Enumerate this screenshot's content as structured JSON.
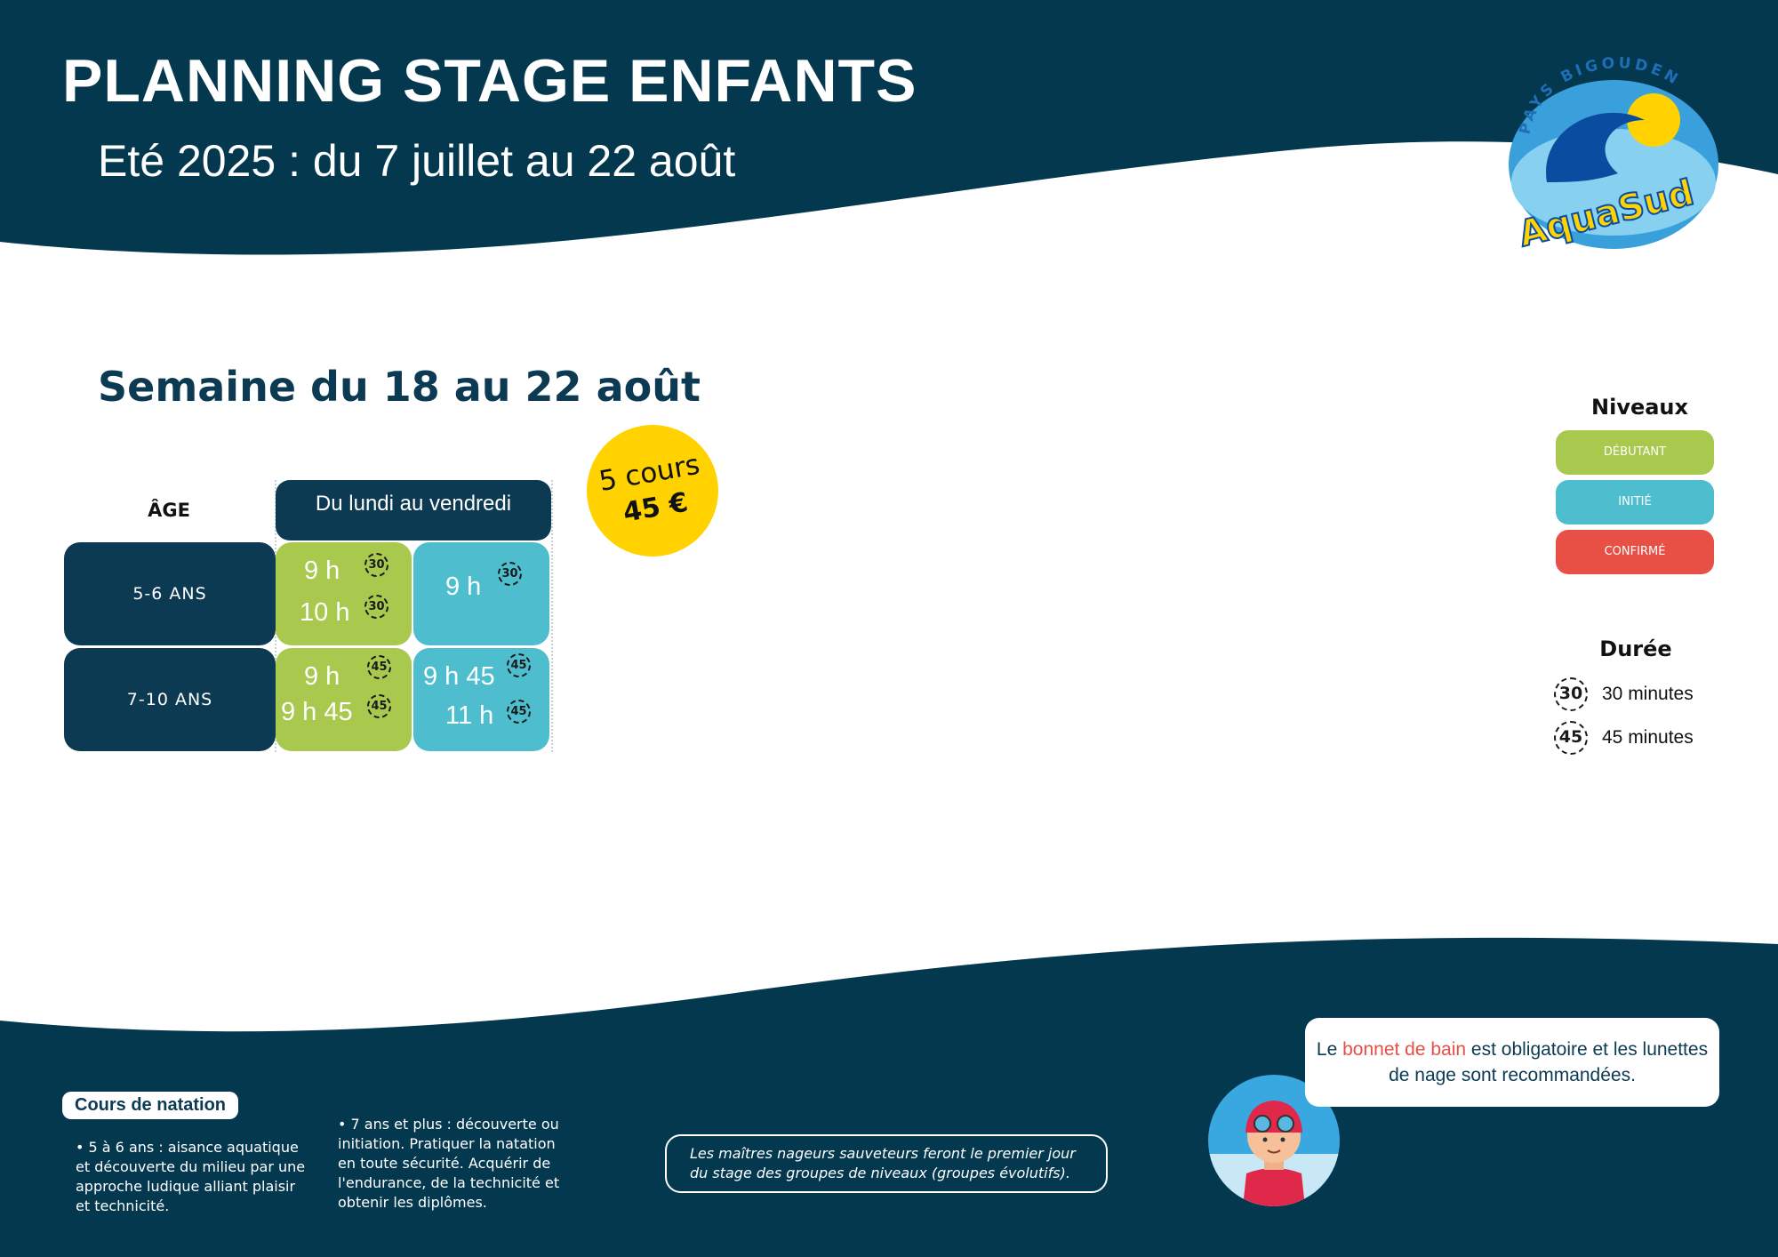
{
  "header": {
    "title": "PLANNING STAGE ENFANTS",
    "subtitle": "Eté 2025 : du 7 juillet au 22 août"
  },
  "logo": {
    "top_text": "PAYS BIGOUDEN",
    "brand": "AquaSud"
  },
  "colors": {
    "navy": "#0c3a52",
    "debutant": "#a8c94e",
    "initie": "#4ebece",
    "confirme": "#e84f45",
    "price_badge": "#ffd200"
  },
  "week": {
    "title": "Semaine du 18 au 22 août"
  },
  "price": {
    "line1": "5 cours",
    "line2": "45 €"
  },
  "table": {
    "age_header": "ÂGE",
    "days_header": "Du lundi au vendredi",
    "rows": [
      {
        "age": "5-6 ANS",
        "debutant": [
          {
            "time": "9 h",
            "duration": "30"
          },
          {
            "time": "10 h",
            "duration": "30"
          }
        ],
        "initie": [
          {
            "time": "9 h",
            "duration": "30"
          }
        ]
      },
      {
        "age": "7-10 ANS",
        "debutant": [
          {
            "time": "9 h",
            "duration": "45"
          },
          {
            "time": "9 h 45",
            "duration": "45"
          }
        ],
        "initie": [
          {
            "time": "9 h 45",
            "duration": "45"
          },
          {
            "time": "11 h",
            "duration": "45"
          }
        ]
      }
    ]
  },
  "levels": {
    "title": "Niveaux",
    "items": [
      "DÉBUTANT",
      "INITIÉ",
      "CONFIRMÉ"
    ]
  },
  "durations": {
    "title": "Durée",
    "items": [
      {
        "badge": "30",
        "label": "30 minutes"
      },
      {
        "badge": "45",
        "label": "45 minutes"
      }
    ]
  },
  "footer": {
    "tag": "Cours de natation",
    "note1": "• 5 à 6 ans : aisance aquatique et découverte du milieu par une approche ludique alliant plaisir et technicité.",
    "note2": "• 7 ans et plus : découverte ou initiation. Pratiquer la natation en toute sécurité. Acquérir de l'endurance, de la technicité et obtenir les diplômes.",
    "info": "Les maîtres nageurs sauveteurs feront le premier jour du stage des groupes de niveaux (groupes évolutifs).",
    "bubble": {
      "part1": "Le ",
      "highlight": "bonnet de bain",
      "part2": " est obligatoire et les lunettes de nage sont recommandées."
    }
  }
}
